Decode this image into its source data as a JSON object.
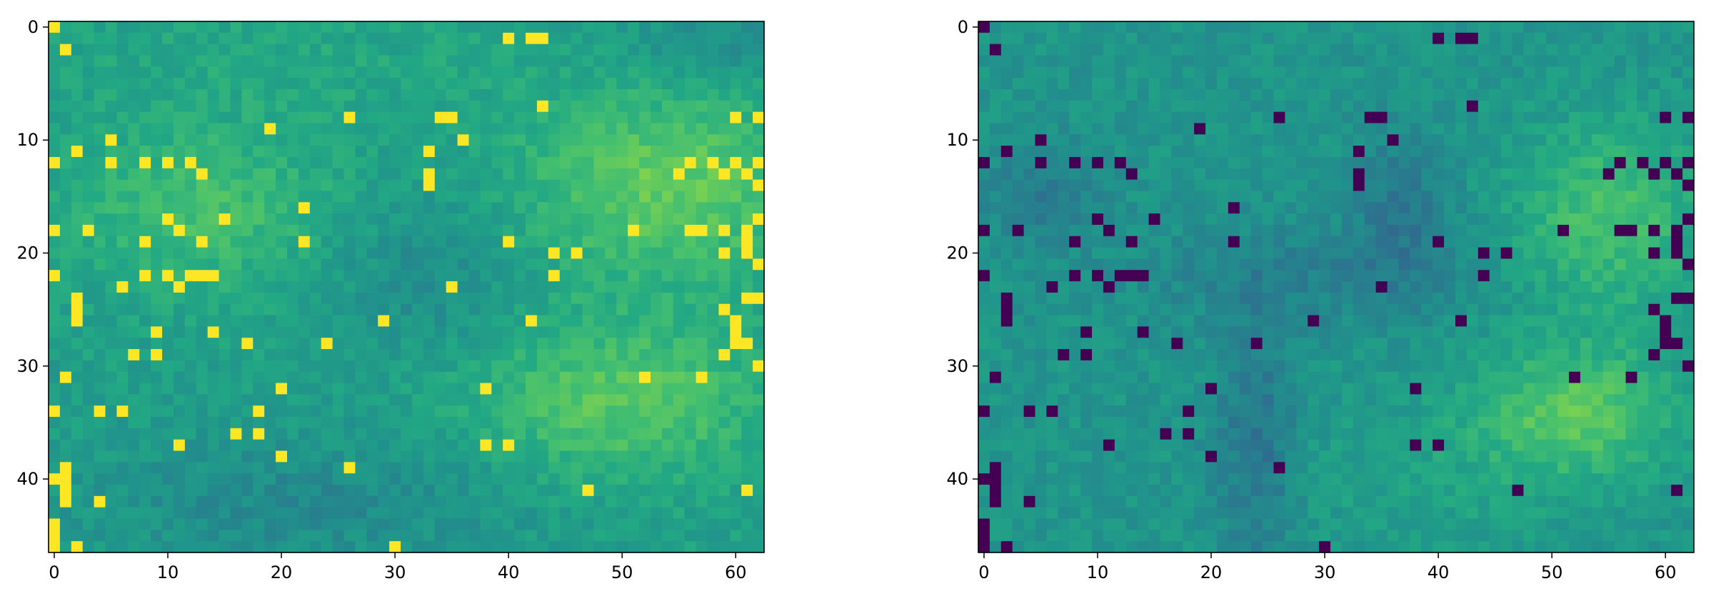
{
  "chart_data": [
    {
      "type": "heatmap",
      "title": "",
      "xlabel": "",
      "ylabel": "",
      "colormap": "viridis",
      "n_cols": 63,
      "n_rows": 47,
      "xlim": [
        -0.5,
        62.5
      ],
      "ylim": [
        46.5,
        -0.5
      ],
      "x_ticks": [
        0,
        10,
        20,
        30,
        40,
        50,
        60
      ],
      "y_ticks": [
        0,
        10,
        20,
        30,
        40
      ],
      "value_range": [
        0,
        1
      ],
      "grid": false,
      "legend": "none",
      "field": {
        "base": 0.56,
        "blobs": [
          {
            "cx": 13,
            "cy": 16,
            "sx": 8,
            "sy": 5,
            "amp": 0.14
          },
          {
            "cx": 54,
            "cy": 14,
            "sx": 9,
            "sy": 6,
            "amp": 0.2
          },
          {
            "cx": 50,
            "cy": 33,
            "sx": 9,
            "sy": 5,
            "amp": 0.18
          },
          {
            "cx": 33,
            "cy": 22,
            "sx": 6,
            "sy": 5,
            "amp": -0.08
          },
          {
            "cx": 22,
            "cy": 42,
            "sx": 14,
            "sy": 4,
            "amp": -0.09
          },
          {
            "cx": 58,
            "cy": 1,
            "sx": 6,
            "sy": 3,
            "amp": -0.08
          },
          {
            "cx": 20,
            "cy": 3,
            "sx": 16,
            "sy": 4,
            "amp": 0.04
          }
        ],
        "noise_amp": 0.1
      },
      "marked_cells": [
        [
          0,
          0
        ],
        [
          1,
          2
        ],
        [
          40,
          1
        ],
        [
          42,
          1
        ],
        [
          43,
          1
        ],
        [
          43,
          7
        ],
        [
          26,
          8
        ],
        [
          34,
          8
        ],
        [
          35,
          8
        ],
        [
          60,
          8
        ],
        [
          62,
          8
        ],
        [
          19,
          9
        ],
        [
          33,
          11
        ],
        [
          36,
          10
        ],
        [
          5,
          10
        ],
        [
          2,
          11
        ],
        [
          0,
          12
        ],
        [
          5,
          12
        ],
        [
          10,
          12
        ],
        [
          13,
          13
        ],
        [
          33,
          13
        ],
        [
          33,
          14
        ],
        [
          56,
          12
        ],
        [
          58,
          12
        ],
        [
          60,
          12
        ],
        [
          62,
          12
        ],
        [
          8,
          12
        ],
        [
          12,
          12
        ],
        [
          55,
          13
        ],
        [
          59,
          13
        ],
        [
          61,
          13
        ],
        [
          62,
          14
        ],
        [
          22,
          16
        ],
        [
          10,
          17
        ],
        [
          15,
          17
        ],
        [
          0,
          18
        ],
        [
          3,
          18
        ],
        [
          8,
          19
        ],
        [
          11,
          18
        ],
        [
          13,
          19
        ],
        [
          22,
          19
        ],
        [
          40,
          19
        ],
        [
          44,
          20
        ],
        [
          46,
          20
        ],
        [
          51,
          18
        ],
        [
          56,
          18
        ],
        [
          57,
          18
        ],
        [
          59,
          18
        ],
        [
          61,
          18
        ],
        [
          62,
          17
        ],
        [
          61,
          19
        ],
        [
          59,
          20
        ],
        [
          61,
          20
        ],
        [
          62,
          21
        ],
        [
          8,
          22
        ],
        [
          10,
          22
        ],
        [
          12,
          22
        ],
        [
          13,
          22
        ],
        [
          14,
          22
        ],
        [
          0,
          22
        ],
        [
          6,
          23
        ],
        [
          11,
          23
        ],
        [
          35,
          23
        ],
        [
          44,
          22
        ],
        [
          2,
          24
        ],
        [
          2,
          25
        ],
        [
          2,
          26
        ],
        [
          62,
          24
        ],
        [
          61,
          24
        ],
        [
          59,
          25
        ],
        [
          60,
          26
        ],
        [
          60,
          27
        ],
        [
          60,
          28
        ],
        [
          61,
          28
        ],
        [
          59,
          29
        ],
        [
          62,
          30
        ],
        [
          29,
          26
        ],
        [
          42,
          26
        ],
        [
          9,
          27
        ],
        [
          14,
          27
        ],
        [
          17,
          28
        ],
        [
          24,
          28
        ],
        [
          7,
          29
        ],
        [
          9,
          29
        ],
        [
          1,
          31
        ],
        [
          52,
          31
        ],
        [
          57,
          31
        ],
        [
          20,
          32
        ],
        [
          38,
          32
        ],
        [
          0,
          34
        ],
        [
          4,
          34
        ],
        [
          6,
          34
        ],
        [
          18,
          34
        ],
        [
          11,
          37
        ],
        [
          16,
          36
        ],
        [
          18,
          36
        ],
        [
          38,
          37
        ],
        [
          40,
          37
        ],
        [
          20,
          38
        ],
        [
          26,
          39
        ],
        [
          0,
          40
        ],
        [
          1,
          40
        ],
        [
          1,
          39
        ],
        [
          1,
          41
        ],
        [
          1,
          42
        ],
        [
          4,
          42
        ],
        [
          47,
          41
        ],
        [
          61,
          41
        ],
        [
          0,
          44
        ],
        [
          0,
          45
        ],
        [
          0,
          46
        ],
        [
          2,
          46
        ],
        [
          30,
          46
        ]
      ],
      "marked_value": 1.0
    },
    {
      "type": "heatmap",
      "title": "",
      "xlabel": "",
      "ylabel": "",
      "colormap": "viridis",
      "n_cols": 63,
      "n_rows": 47,
      "xlim": [
        -0.5,
        62.5
      ],
      "ylim": [
        46.5,
        -0.5
      ],
      "x_ticks": [
        0,
        10,
        20,
        30,
        40,
        50,
        60
      ],
      "y_ticks": [
        0,
        10,
        20,
        30,
        40
      ],
      "value_range": [
        0,
        1
      ],
      "grid": false,
      "legend": "none",
      "field": {
        "base": 0.52,
        "blobs": [
          {
            "cx": 55,
            "cy": 17,
            "sx": 6,
            "sy": 6,
            "amp": 0.18
          },
          {
            "cx": 52,
            "cy": 34,
            "sx": 6,
            "sy": 4,
            "amp": 0.22
          },
          {
            "cx": 37,
            "cy": 16,
            "sx": 3,
            "sy": 5,
            "amp": -0.12
          },
          {
            "cx": 24,
            "cy": 37,
            "sx": 2.5,
            "sy": 8,
            "amp": -0.14
          },
          {
            "cx": 28,
            "cy": 22,
            "sx": 10,
            "sy": 3,
            "amp": -0.08
          },
          {
            "cx": 5,
            "cy": 15,
            "sx": 4,
            "sy": 3,
            "amp": -0.1
          },
          {
            "cx": 40,
            "cy": 40,
            "sx": 10,
            "sy": 5,
            "amp": 0.05
          }
        ],
        "noise_amp": 0.1
      },
      "marked_cells": [
        [
          0,
          0
        ],
        [
          1,
          2
        ],
        [
          40,
          1
        ],
        [
          42,
          1
        ],
        [
          43,
          1
        ],
        [
          43,
          7
        ],
        [
          26,
          8
        ],
        [
          34,
          8
        ],
        [
          35,
          8
        ],
        [
          60,
          8
        ],
        [
          62,
          8
        ],
        [
          19,
          9
        ],
        [
          33,
          11
        ],
        [
          36,
          10
        ],
        [
          5,
          10
        ],
        [
          2,
          11
        ],
        [
          0,
          12
        ],
        [
          5,
          12
        ],
        [
          10,
          12
        ],
        [
          13,
          13
        ],
        [
          33,
          13
        ],
        [
          33,
          14
        ],
        [
          56,
          12
        ],
        [
          58,
          12
        ],
        [
          60,
          12
        ],
        [
          62,
          12
        ],
        [
          8,
          12
        ],
        [
          12,
          12
        ],
        [
          55,
          13
        ],
        [
          59,
          13
        ],
        [
          61,
          13
        ],
        [
          62,
          14
        ],
        [
          22,
          16
        ],
        [
          10,
          17
        ],
        [
          15,
          17
        ],
        [
          0,
          18
        ],
        [
          3,
          18
        ],
        [
          8,
          19
        ],
        [
          11,
          18
        ],
        [
          13,
          19
        ],
        [
          22,
          19
        ],
        [
          40,
          19
        ],
        [
          44,
          20
        ],
        [
          46,
          20
        ],
        [
          51,
          18
        ],
        [
          56,
          18
        ],
        [
          57,
          18
        ],
        [
          59,
          18
        ],
        [
          61,
          18
        ],
        [
          62,
          17
        ],
        [
          61,
          19
        ],
        [
          59,
          20
        ],
        [
          61,
          20
        ],
        [
          62,
          21
        ],
        [
          8,
          22
        ],
        [
          10,
          22
        ],
        [
          12,
          22
        ],
        [
          13,
          22
        ],
        [
          14,
          22
        ],
        [
          0,
          22
        ],
        [
          6,
          23
        ],
        [
          11,
          23
        ],
        [
          35,
          23
        ],
        [
          44,
          22
        ],
        [
          2,
          24
        ],
        [
          2,
          25
        ],
        [
          2,
          26
        ],
        [
          62,
          24
        ],
        [
          61,
          24
        ],
        [
          59,
          25
        ],
        [
          60,
          26
        ],
        [
          60,
          27
        ],
        [
          60,
          28
        ],
        [
          61,
          28
        ],
        [
          59,
          29
        ],
        [
          62,
          30
        ],
        [
          29,
          26
        ],
        [
          42,
          26
        ],
        [
          9,
          27
        ],
        [
          14,
          27
        ],
        [
          17,
          28
        ],
        [
          24,
          28
        ],
        [
          7,
          29
        ],
        [
          9,
          29
        ],
        [
          1,
          31
        ],
        [
          52,
          31
        ],
        [
          57,
          31
        ],
        [
          20,
          32
        ],
        [
          38,
          32
        ],
        [
          0,
          34
        ],
        [
          4,
          34
        ],
        [
          6,
          34
        ],
        [
          18,
          34
        ],
        [
          11,
          37
        ],
        [
          16,
          36
        ],
        [
          18,
          36
        ],
        [
          38,
          37
        ],
        [
          40,
          37
        ],
        [
          20,
          38
        ],
        [
          26,
          39
        ],
        [
          0,
          40
        ],
        [
          1,
          40
        ],
        [
          1,
          39
        ],
        [
          1,
          41
        ],
        [
          1,
          42
        ],
        [
          4,
          42
        ],
        [
          47,
          41
        ],
        [
          61,
          41
        ],
        [
          0,
          44
        ],
        [
          0,
          45
        ],
        [
          0,
          46
        ],
        [
          2,
          46
        ],
        [
          30,
          46
        ]
      ],
      "marked_value": 0.0
    }
  ]
}
